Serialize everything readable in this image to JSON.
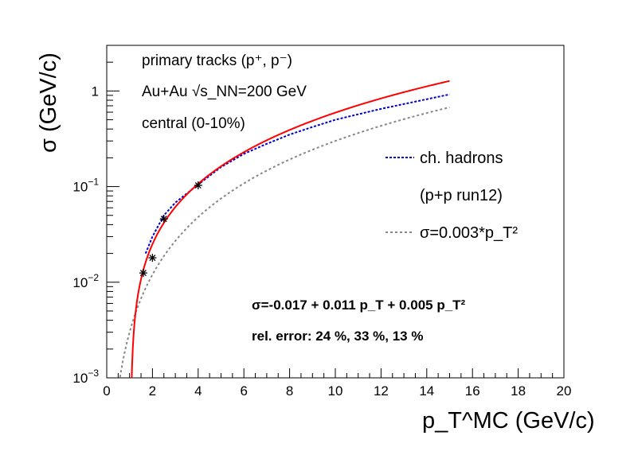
{
  "chart_data": {
    "type": "line",
    "title": "",
    "xlabel": "p_T^MC (GeV/c)",
    "ylabel": "σ (GeV/c)",
    "xlim": [
      0,
      20
    ],
    "ylim": [
      0.001,
      3
    ],
    "yscale": "log",
    "x_ticks": [
      "0",
      "2",
      "4",
      "6",
      "8",
      "10",
      "12",
      "14",
      "16",
      "18",
      "20"
    ],
    "y_ticks": [
      "10^-3",
      "10^-2",
      "10^-1",
      "1"
    ],
    "annotations": {
      "line1": "primary tracks (p⁺, p⁻)",
      "line2": "Au+Au √s_NN=200 GeV",
      "line3": "central (0-10%)",
      "fit": "σ=-0.017 + 0.011 p_T + 0.005 p_T²",
      "rel_error": "rel. error: 24 %, 33 %, 13 %"
    },
    "legend": {
      "placement": "right",
      "entries": [
        "ch. hadrons",
        "(p+p run12)",
        "σ=0.003*p_T²"
      ]
    },
    "series": [
      {
        "name": "fit: primary tracks (red)",
        "color": "#ff0000",
        "style": "solid",
        "formula": "-0.017 + 0.011*pT + 0.005*pT^2",
        "x_range": [
          1.0,
          15.0
        ]
      },
      {
        "name": "ch. hadrons",
        "color": "#0000cc",
        "style": "dotted",
        "x": [
          1.7,
          2.0,
          2.5,
          3.0,
          4.0,
          5.0,
          6.0,
          7.0,
          8.0,
          9.0,
          10.0,
          11.0,
          12.0,
          13.0,
          14.0,
          15.0
        ],
        "y": [
          0.02,
          0.03,
          0.05,
          0.068,
          0.105,
          0.16,
          0.22,
          0.28,
          0.35,
          0.42,
          0.5,
          0.57,
          0.65,
          0.73,
          0.82,
          0.92
        ]
      },
      {
        "name": "σ=0.003*p_T²",
        "color": "#888888",
        "style": "dotted",
        "formula": "0.003*pT^2",
        "x_range": [
          0.55,
          15.0
        ]
      },
      {
        "name": "data points",
        "type": "scatter",
        "marker": "star",
        "color": "#000000",
        "x": [
          1.6,
          2.0,
          2.5,
          4.0
        ],
        "y": [
          0.0125,
          0.018,
          0.046,
          0.103
        ]
      }
    ]
  }
}
